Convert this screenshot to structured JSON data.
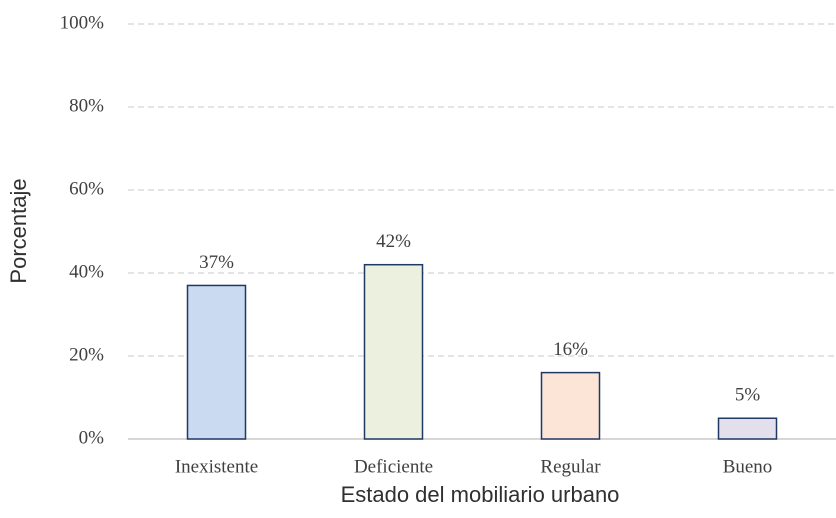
{
  "chart_data": {
    "type": "bar",
    "xlabel": "Estado del mobiliario urbano",
    "ylabel": "Porcentaje",
    "categories": [
      "Inexistente",
      "Deficiente",
      "Regular",
      "Bueno"
    ],
    "values": [
      37,
      42,
      16,
      5
    ],
    "value_labels": [
      "37%",
      "42%",
      "16%",
      "5%"
    ],
    "colors": [
      "#c9daf1",
      "#ebf1de",
      "#fce4d6",
      "#e4dfec"
    ],
    "edgecolor": "#1f3864",
    "ylim": [
      0,
      100
    ],
    "yticks": [
      {
        "value": 0,
        "label": "0%"
      },
      {
        "value": 20,
        "label": "20%"
      },
      {
        "value": 40,
        "label": "40%"
      },
      {
        "value": 60,
        "label": "60%"
      },
      {
        "value": 80,
        "label": "80%"
      },
      {
        "value": 100,
        "label": "100%"
      }
    ],
    "grid": true
  }
}
